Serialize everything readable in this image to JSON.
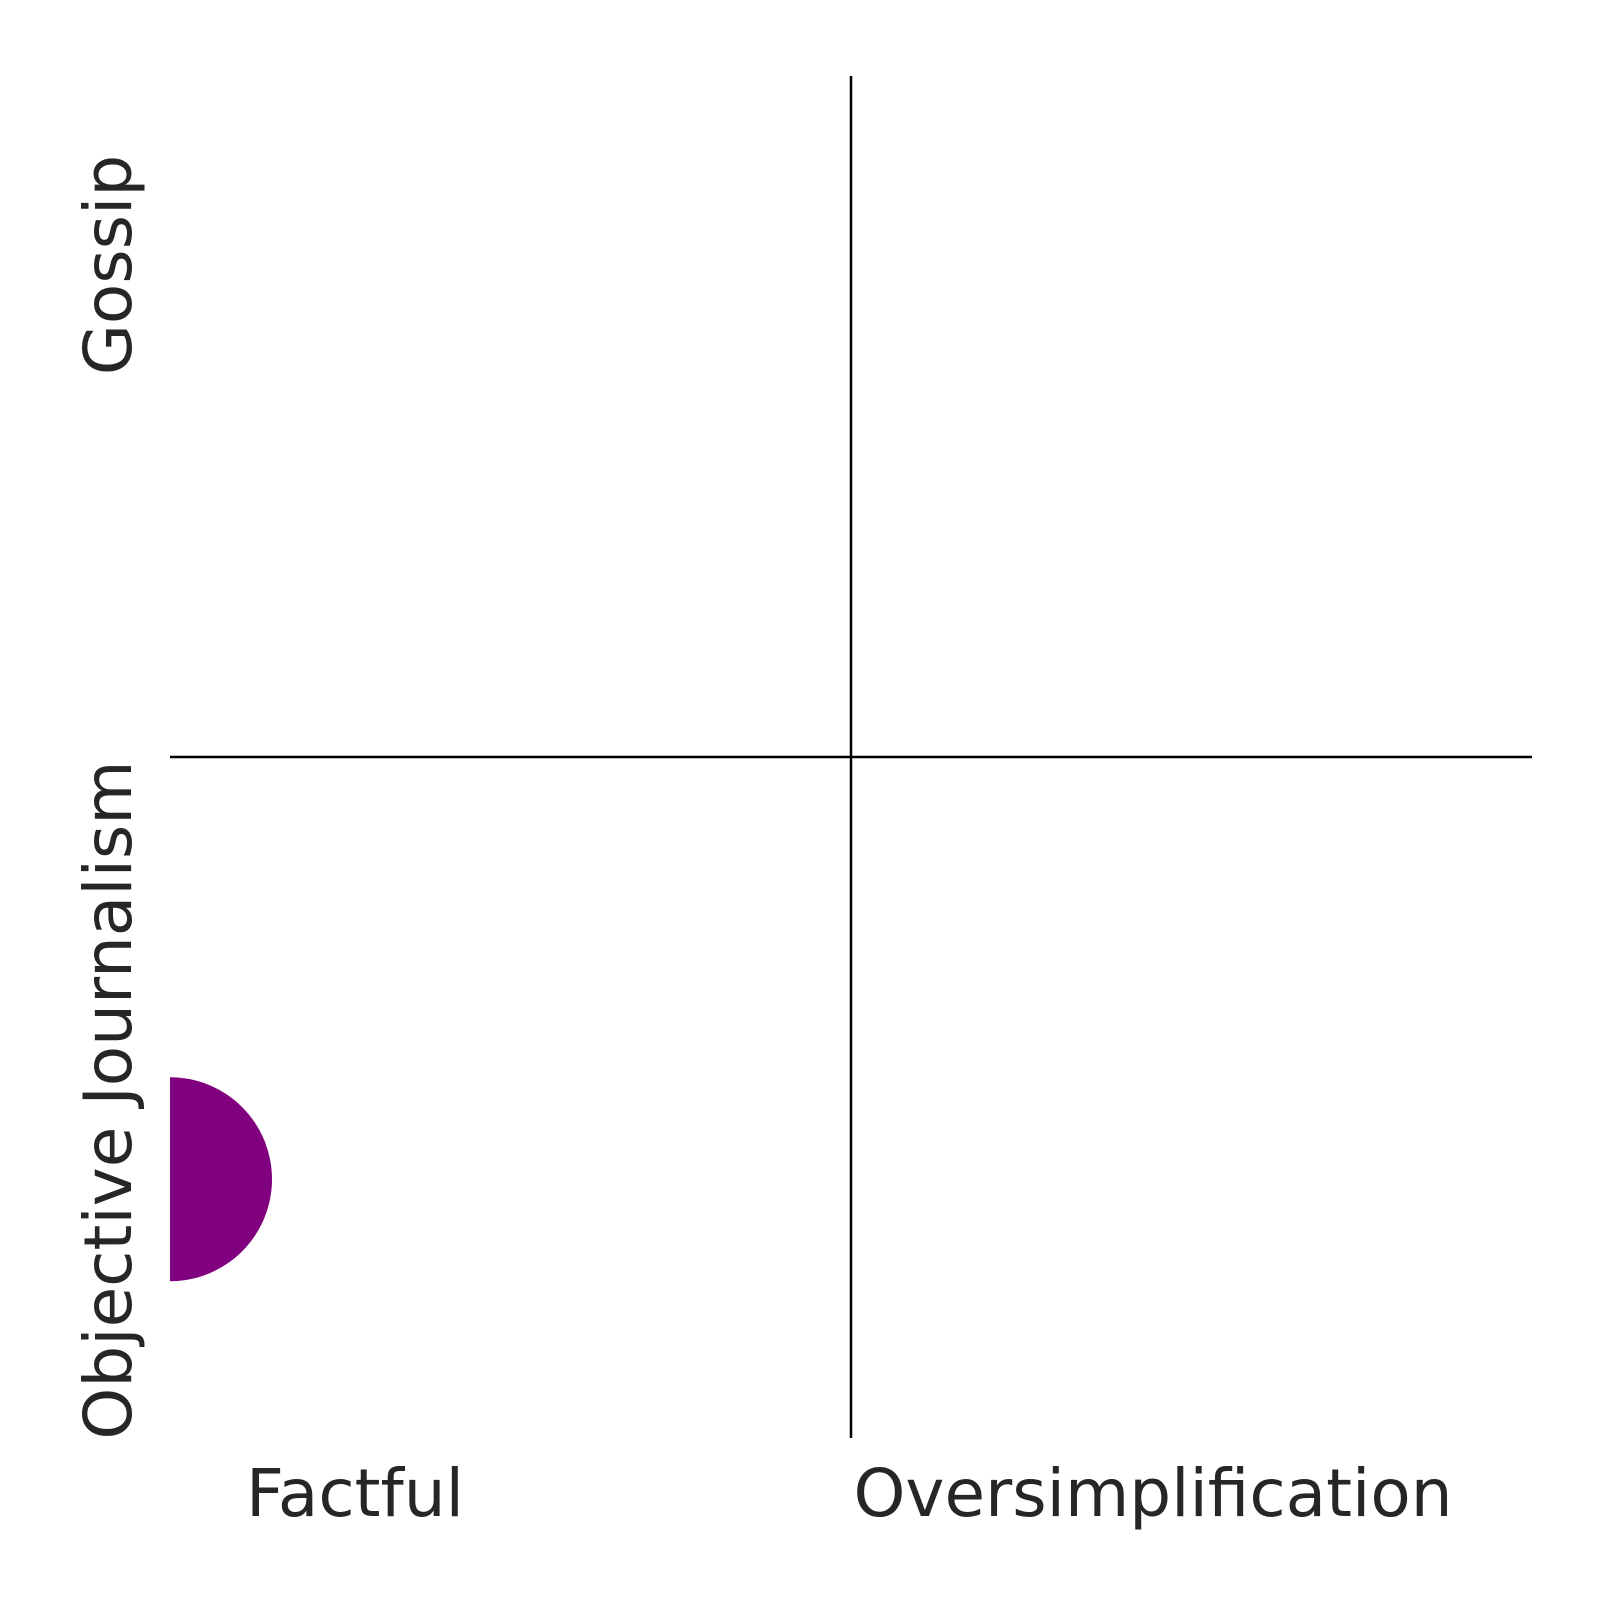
{
  "chart_data": {
    "type": "scatter",
    "title": "",
    "x_axis": {
      "low_label": "Factful",
      "high_label": "Oversimplification",
      "range": [
        0,
        10
      ],
      "midpoint": 5
    },
    "y_axis": {
      "low_label": "Objective Journalism",
      "high_label": "Gossip",
      "range": [
        0,
        10
      ],
      "midpoint": 5
    },
    "grid": false,
    "legend": "none",
    "points": [
      {
        "x": 0,
        "y": 1.9,
        "color": "#800080"
      }
    ]
  }
}
